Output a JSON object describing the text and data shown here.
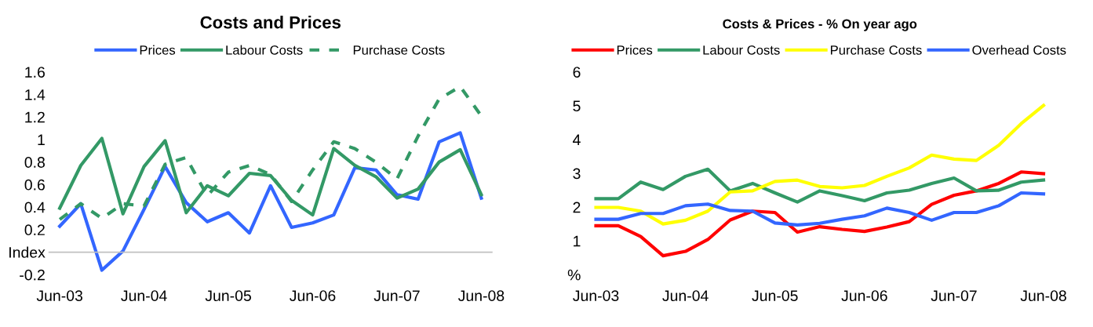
{
  "chart_data": [
    {
      "type": "line",
      "title": "Costs and Prices",
      "categories": [
        "Jun-03",
        null,
        null,
        null,
        "Jun-04",
        null,
        null,
        null,
        "Jun-05",
        null,
        null,
        null,
        "Jun-06",
        null,
        null,
        null,
        "Jun-07",
        null,
        null,
        null,
        "Jun-08"
      ],
      "series": [
        {
          "name": "Prices",
          "color": "#3366ff",
          "values": [
            0.23,
            0.43,
            -0.16,
            0.01,
            0.38,
            0.76,
            0.44,
            0.27,
            0.35,
            0.17,
            0.59,
            0.22,
            0.26,
            0.33,
            0.75,
            0.73,
            0.51,
            0.47,
            0.98,
            1.06,
            0.48
          ]
        },
        {
          "name": "Labour Costs",
          "color": "#339966",
          "values": [
            0.39,
            0.77,
            1.01,
            0.34,
            0.76,
            0.99,
            0.35,
            0.59,
            0.5,
            0.7,
            0.68,
            0.46,
            0.33,
            0.92,
            0.77,
            0.67,
            0.48,
            0.56,
            0.8,
            0.91,
            0.51
          ]
        },
        {
          "name": "Purchase Costs",
          "color": "#339966",
          "line_style": "dashed",
          "values": [
            0.29,
            0.43,
            0.3,
            0.43,
            0.41,
            0.78,
            0.84,
            0.5,
            0.71,
            0.77,
            0.69,
            0.45,
            0.73,
            0.98,
            0.92,
            0.8,
            0.65,
            1.03,
            1.36,
            1.47,
            1.21
          ]
        }
      ],
      "ylim": [
        -0.2,
        1.6
      ],
      "yticks": [
        -0.2,
        {
          "value": 0,
          "label": "Index"
        },
        0.2,
        0.4,
        0.6,
        0.8,
        1,
        1.2,
        1.4,
        1.6
      ],
      "grid": false,
      "legend": "top",
      "line_style": "solid",
      "marker": "none"
    },
    {
      "type": "line",
      "title": "Costs & Prices - % On year ago",
      "categories": [
        "Jun-03",
        null,
        null,
        null,
        "Jun-04",
        null,
        null,
        null,
        "Jun-05",
        null,
        null,
        null,
        "Jun-06",
        null,
        null,
        null,
        "Jun-07",
        null,
        null,
        null,
        "Jun-08"
      ],
      "series": [
        {
          "name": "Prices",
          "color": "#ff0000",
          "values": [
            1.45,
            1.45,
            1.13,
            0.56,
            0.69,
            1.04,
            1.62,
            1.88,
            1.84,
            1.26,
            1.42,
            1.34,
            1.28,
            1.41,
            1.57,
            2.08,
            2.35,
            2.48,
            2.7,
            3.04,
            2.99
          ]
        },
        {
          "name": "Labour Costs",
          "color": "#339966",
          "values": [
            2.25,
            2.25,
            2.74,
            2.52,
            2.91,
            3.12,
            2.48,
            2.7,
            2.42,
            2.15,
            2.48,
            2.34,
            2.19,
            2.42,
            2.5,
            2.7,
            2.86,
            2.48,
            2.5,
            2.74,
            2.8
          ]
        },
        {
          "name": "Purchase Costs",
          "color": "#ffff00",
          "values": [
            1.99,
            1.99,
            1.88,
            1.5,
            1.61,
            1.88,
            2.45,
            2.48,
            2.76,
            2.8,
            2.61,
            2.57,
            2.64,
            2.91,
            3.16,
            3.54,
            3.42,
            3.38,
            3.83,
            4.47,
            5.01
          ]
        },
        {
          "name": "Overhead Costs",
          "color": "#3366ff",
          "values": [
            1.64,
            1.64,
            1.81,
            1.81,
            2.04,
            2.09,
            1.9,
            1.88,
            1.53,
            1.47,
            1.52,
            1.64,
            1.74,
            1.97,
            1.84,
            1.61,
            1.84,
            1.84,
            2.04,
            2.42,
            2.39
          ]
        }
      ],
      "ylim": [
        0,
        6
      ],
      "yticks": [
        {
          "value": 0,
          "label": "%"
        },
        1,
        2,
        3,
        4,
        5,
        6
      ],
      "grid": false,
      "legend": "top",
      "line_style": "solid",
      "marker": "none"
    }
  ]
}
